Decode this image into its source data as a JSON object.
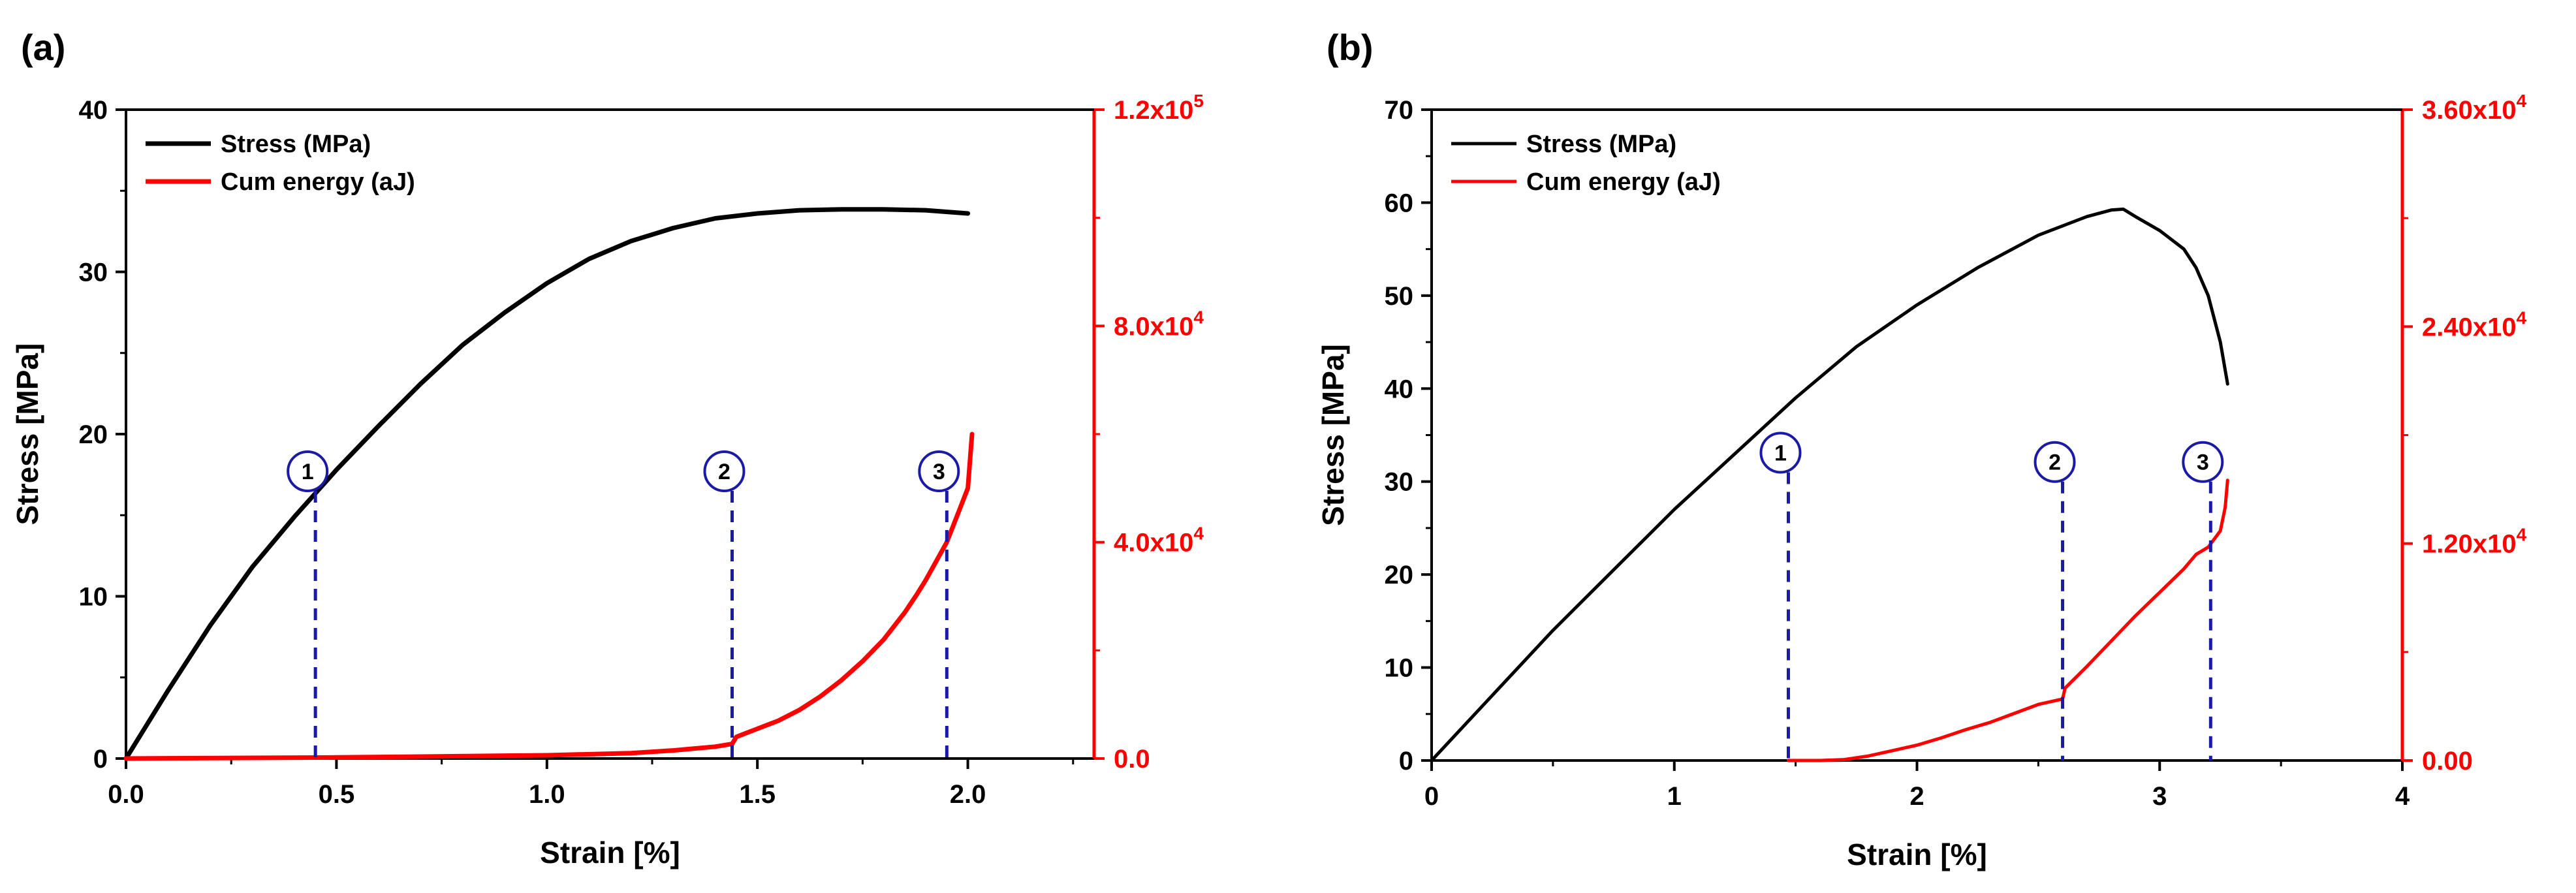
{
  "colors": {
    "stress": "#000000",
    "energy": "#ff0000",
    "marker": "#1a1aa6",
    "axis": "#000000"
  },
  "chart_data": [
    {
      "panel_label": "(a)",
      "type": "line",
      "xlabel": "Strain [%]",
      "ylabel": "Stress [MPa]",
      "xlim": [
        0,
        2.3
      ],
      "xticks": [
        0.0,
        0.5,
        1.0,
        1.5,
        2.0
      ],
      "xtick_labels": [
        "0.0",
        "0.5",
        "1.0",
        "1.5",
        "2.0"
      ],
      "ylim": [
        0,
        40
      ],
      "yticks": [
        0,
        10,
        20,
        30,
        40
      ],
      "ytick_labels": [
        "0",
        "10",
        "20",
        "30",
        "40"
      ],
      "y2lim": [
        0,
        120000
      ],
      "y2ticks": [
        0,
        40000,
        80000,
        120000
      ],
      "y2tick_labels": [
        {
          "base": "0.0",
          "exp": ""
        },
        {
          "base": "4.0x10",
          "exp": "4"
        },
        {
          "base": "8.0x10",
          "exp": "4"
        },
        {
          "base": "1.2x10",
          "exp": "5"
        }
      ],
      "series": [
        {
          "name": "Stress (MPa)",
          "axis": "left",
          "x": [
            0,
            0.1,
            0.2,
            0.3,
            0.4,
            0.5,
            0.6,
            0.7,
            0.8,
            0.9,
            1.0,
            1.1,
            1.2,
            1.3,
            1.4,
            1.5,
            1.6,
            1.7,
            1.8,
            1.9,
            2.0
          ],
          "y": [
            0,
            4.2,
            8.2,
            11.8,
            14.9,
            17.8,
            20.5,
            23.1,
            25.5,
            27.5,
            29.3,
            30.8,
            31.9,
            32.7,
            33.3,
            33.6,
            33.8,
            33.85,
            33.85,
            33.8,
            33.6
          ]
        },
        {
          "name": "Cum energy (aJ)",
          "axis": "right",
          "x": [
            0,
            0.5,
            1.0,
            1.2,
            1.3,
            1.4,
            1.44,
            1.45,
            1.5,
            1.55,
            1.6,
            1.65,
            1.7,
            1.75,
            1.8,
            1.85,
            1.88,
            1.9,
            1.95,
            1.98,
            2.0,
            2.005,
            2.01
          ],
          "y": [
            0,
            200,
            600,
            1000,
            1500,
            2200,
            2700,
            4000,
            5500,
            7000,
            9000,
            11500,
            14500,
            18000,
            22000,
            27000,
            30500,
            33000,
            40000,
            46000,
            50000,
            55000,
            60000
          ]
        }
      ],
      "markers": [
        {
          "label": "1",
          "x": 0.45,
          "y_top": 16.5
        },
        {
          "label": "2",
          "x": 1.44,
          "y_top": 16.5
        },
        {
          "label": "3",
          "x": 1.95,
          "y_top": 16.5
        }
      ],
      "legend": [
        "Stress (MPa)",
        "Cum energy (aJ)"
      ],
      "legend_position": "top-left"
    },
    {
      "panel_label": "(b)",
      "type": "line",
      "xlabel": "Strain [%]",
      "ylabel": "Stress [MPa]",
      "xlim": [
        0,
        4
      ],
      "xticks": [
        0,
        1,
        2,
        3,
        4
      ],
      "xtick_labels": [
        "0",
        "1",
        "2",
        "3",
        "4"
      ],
      "ylim": [
        0,
        70
      ],
      "yticks": [
        0,
        10,
        20,
        30,
        40,
        50,
        60,
        70
      ],
      "ytick_labels": [
        "0",
        "10",
        "20",
        "30",
        "40",
        "50",
        "60",
        "70"
      ],
      "y2lim": [
        0,
        36000
      ],
      "y2ticks": [
        0,
        12000,
        24000,
        36000
      ],
      "y2tick_labels": [
        {
          "base": "0.00",
          "exp": ""
        },
        {
          "base": "1.20x10",
          "exp": "4"
        },
        {
          "base": "2.40x10",
          "exp": "4"
        },
        {
          "base": "3.60x10",
          "exp": "4"
        }
      ],
      "series": [
        {
          "name": "Stress (MPa)",
          "axis": "left",
          "x": [
            0,
            0.25,
            0.5,
            0.75,
            1.0,
            1.25,
            1.5,
            1.75,
            2.0,
            2.25,
            2.5,
            2.7,
            2.8,
            2.85,
            2.9,
            3.0,
            3.1,
            3.15,
            3.2,
            3.25,
            3.27,
            3.28
          ],
          "y": [
            0,
            7,
            14,
            20.5,
            27,
            33,
            39,
            44.5,
            49,
            53,
            56.5,
            58.5,
            59.2,
            59.3,
            58.5,
            57,
            55,
            53,
            50,
            45,
            42,
            40.5
          ]
        },
        {
          "name": "Cum energy (aJ)",
          "axis": "right",
          "x": [
            1.47,
            1.6,
            1.7,
            1.8,
            1.9,
            2.0,
            2.1,
            2.2,
            2.3,
            2.4,
            2.5,
            2.6,
            2.61,
            2.7,
            2.8,
            2.9,
            3.0,
            3.1,
            3.15,
            3.2,
            3.25,
            3.27,
            3.28
          ],
          "y": [
            0,
            0,
            50,
            250,
            550,
            850,
            1250,
            1700,
            2100,
            2600,
            3100,
            3400,
            4000,
            5200,
            6600,
            8000,
            9300,
            10600,
            11400,
            11800,
            12700,
            14000,
            15500
          ]
        }
      ],
      "markers": [
        {
          "label": "1",
          "x": 1.47,
          "y_top": 31
        },
        {
          "label": "2",
          "x": 2.6,
          "y_top": 30
        },
        {
          "label": "3",
          "x": 3.21,
          "y_top": 30
        }
      ],
      "legend": [
        "Stress (MPa)",
        "Cum energy (aJ)"
      ],
      "legend_position": "top-left"
    }
  ]
}
